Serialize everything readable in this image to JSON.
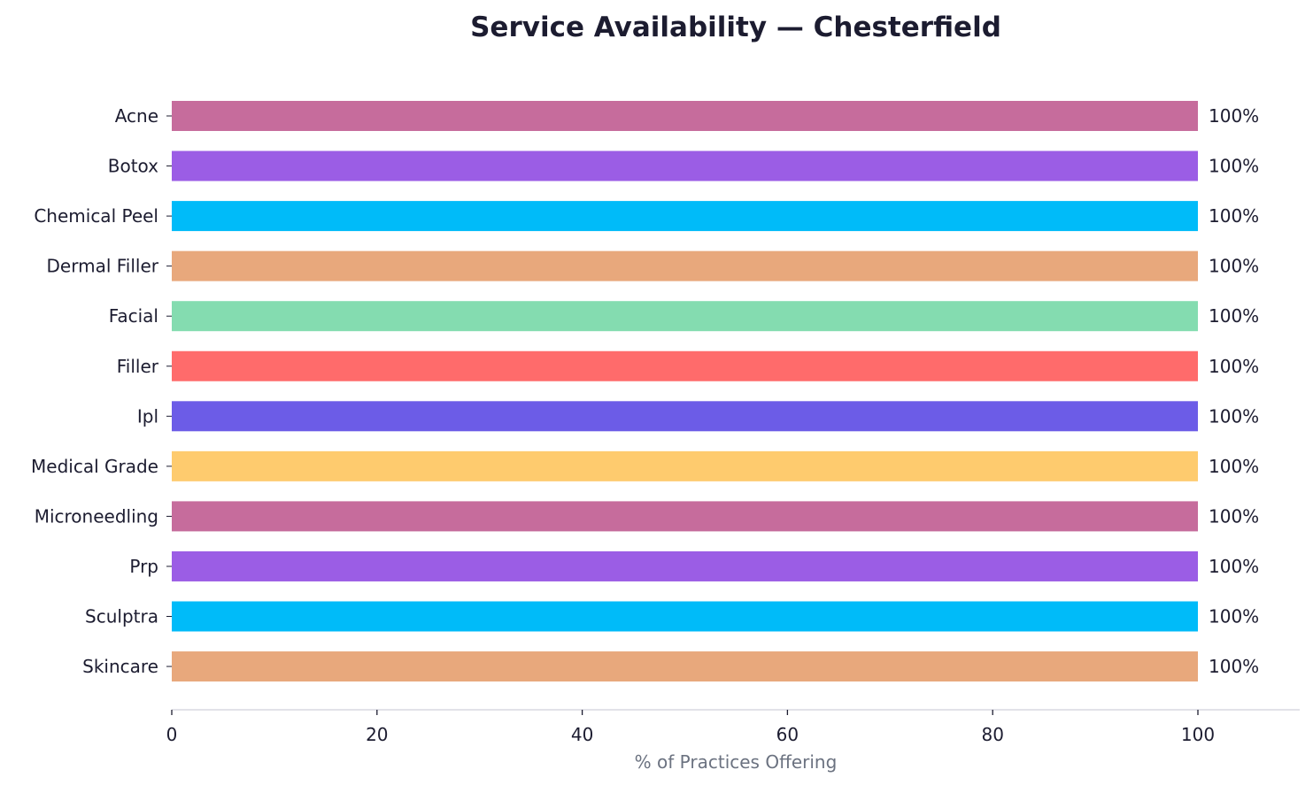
{
  "chart_data": {
    "type": "bar",
    "orientation": "horizontal",
    "title": "Service Availability — Chesterfield",
    "xlabel": "% of Practices Offering",
    "ylabel": "",
    "xlim": [
      0,
      110
    ],
    "xticks": [
      0,
      20,
      40,
      60,
      80,
      100
    ],
    "grid": false,
    "categories": [
      "Acne",
      "Botox",
      "Chemical Peel",
      "Dermal Filler",
      "Facial",
      "Filler",
      "Ipl",
      "Medical Grade",
      "Microneedling",
      "Prp",
      "Sculptra",
      "Skincare"
    ],
    "values": [
      100,
      100,
      100,
      100,
      100,
      100,
      100,
      100,
      100,
      100,
      100,
      100
    ],
    "data_labels": [
      "100%",
      "100%",
      "100%",
      "100%",
      "100%",
      "100%",
      "100%",
      "100%",
      "100%",
      "100%",
      "100%",
      "100%"
    ],
    "colors": [
      "#c66c9c",
      "#9b5de5",
      "#00bbf9",
      "#e8a87c",
      "#84dcb0",
      "#ff6b6b",
      "#6c5ce7",
      "#fecb6e",
      "#c66c9c",
      "#9b5de5",
      "#00bbf9",
      "#e8a87c"
    ]
  }
}
